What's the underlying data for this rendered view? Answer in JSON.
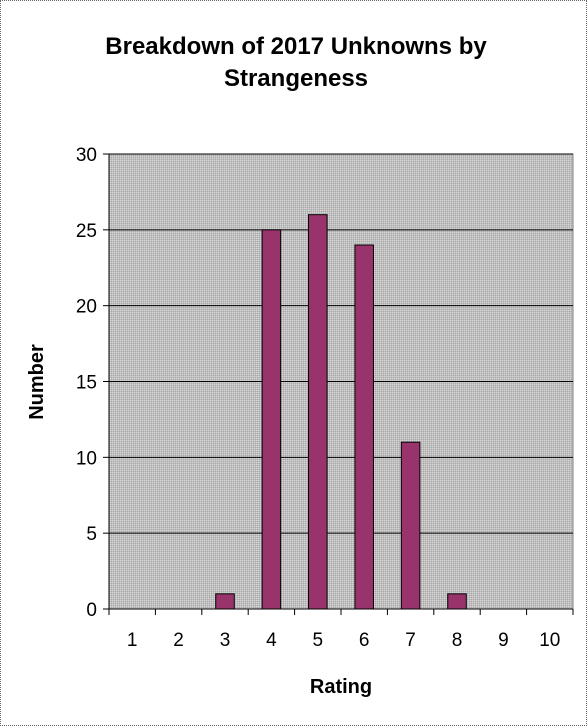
{
  "chart_data": {
    "type": "bar",
    "title_lines": [
      "Breakdown of 2017 Unknowns by",
      "Strangeness"
    ],
    "xlabel": "Rating",
    "ylabel": "Number",
    "categories": [
      "1",
      "2",
      "3",
      "4",
      "5",
      "6",
      "7",
      "8",
      "9",
      "10"
    ],
    "values": [
      0,
      0,
      1,
      25,
      26,
      24,
      11,
      1,
      0,
      0
    ],
    "ylim": [
      0,
      30
    ],
    "yticks": [
      0,
      5,
      10,
      15,
      20,
      25,
      30
    ],
    "grid": "horizontal",
    "legend": "none",
    "colors": {
      "bar_fill": "#99336b",
      "bar_stroke": "#000000",
      "plot_background": "#c0c0c0",
      "gridline": "#000000"
    }
  }
}
